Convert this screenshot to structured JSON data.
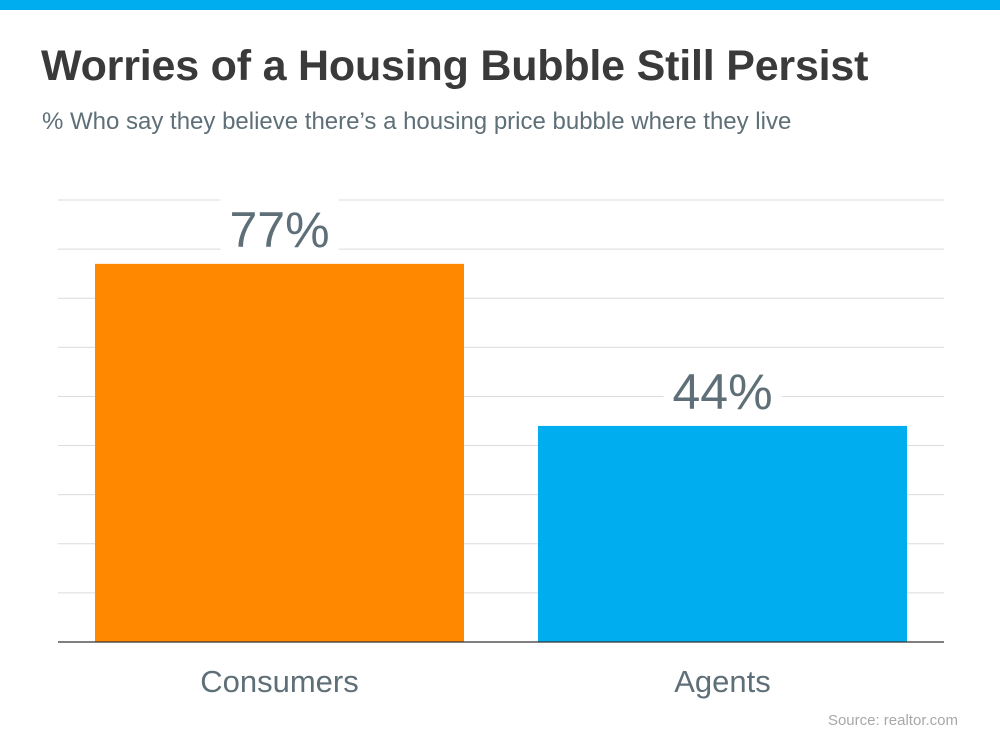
{
  "header": {
    "title": "Worries of a Housing Bubble Still Persist",
    "subtitle": "% Who say they believe there’s a housing price bubble where they live"
  },
  "footer": {
    "source": "Source: realtor.com"
  },
  "colors": {
    "accent_bar": "#00aeef",
    "consumers": "#ff8800",
    "agents": "#00aeef",
    "gridline": "#dcdcdc",
    "baseline": "#333333",
    "label_text": "#5e6f78"
  },
  "chart_data": {
    "type": "bar",
    "title": "Worries of a Housing Bubble Still Persist",
    "subtitle": "% Who say they believe there’s a housing price bubble where they live",
    "categories": [
      "Consumers",
      "Agents"
    ],
    "values": [
      77,
      44
    ],
    "value_labels": [
      "77%",
      "44%"
    ],
    "xlabel": "",
    "ylabel": "",
    "ylim": [
      0,
      90
    ],
    "grid": true,
    "gridline_count": 9
  }
}
